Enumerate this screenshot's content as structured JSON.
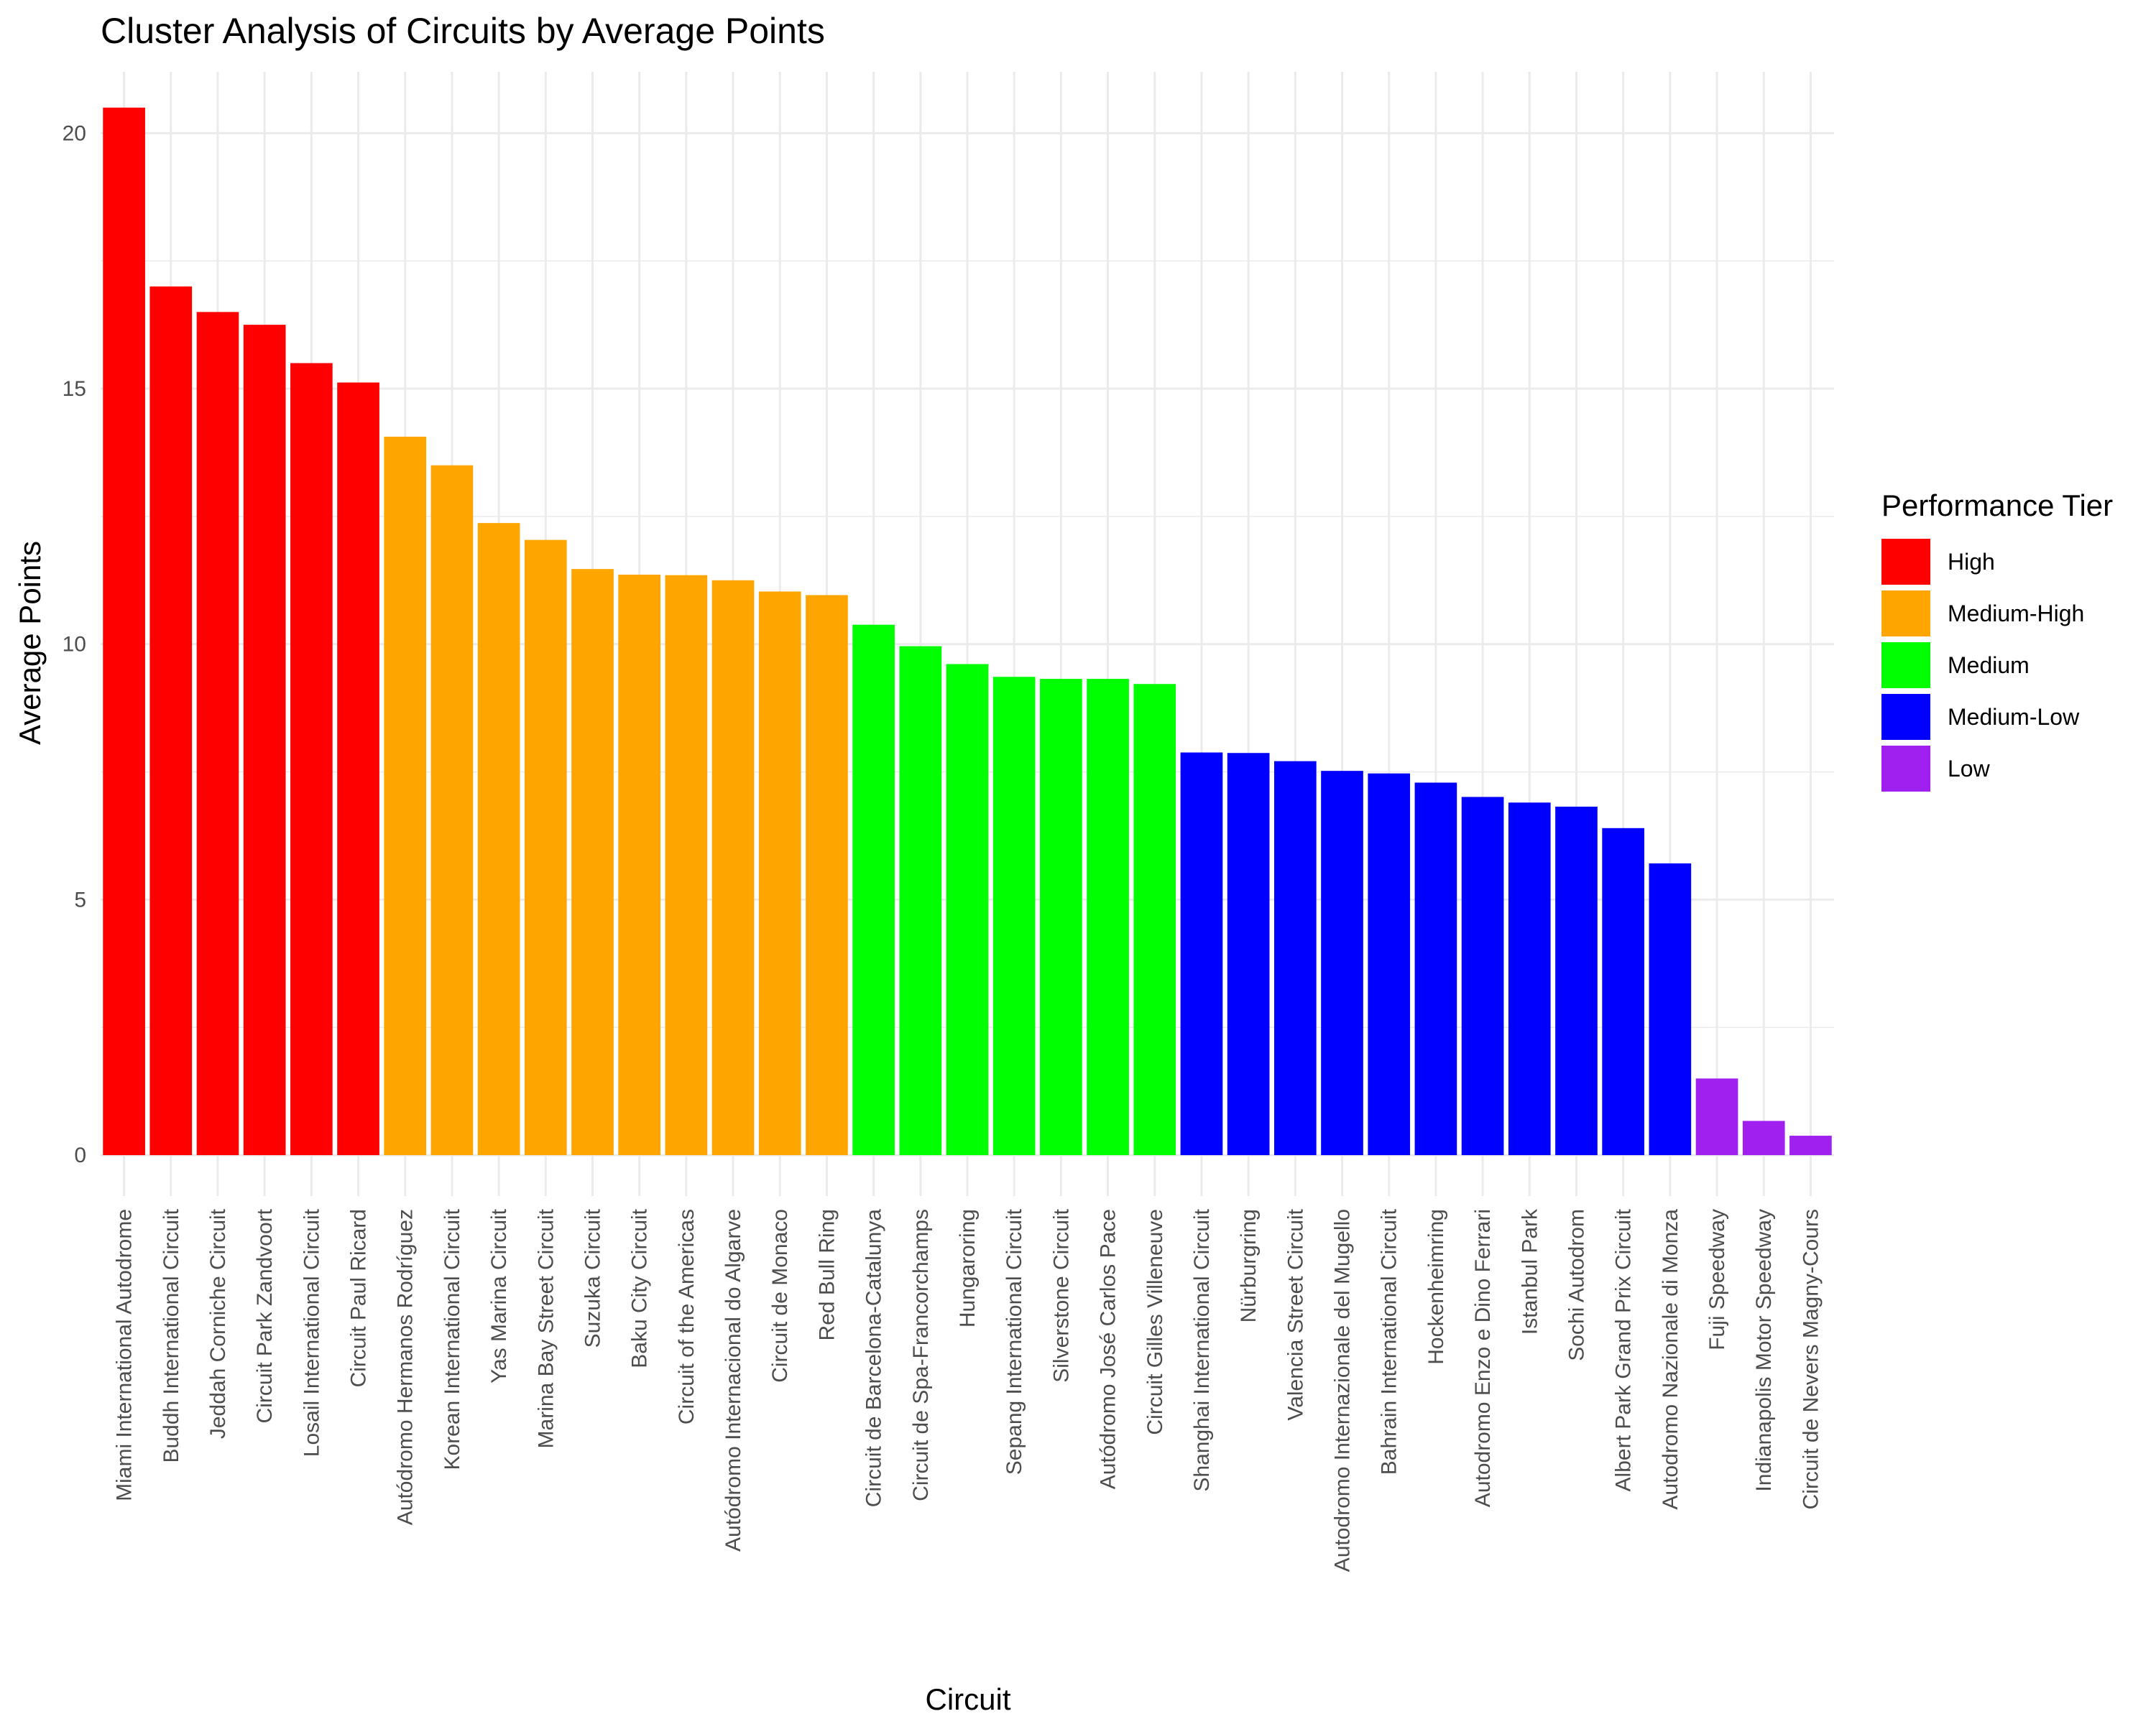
{
  "chart_data": {
    "type": "bar",
    "title": "Cluster Analysis of Circuits by Average Points",
    "xlabel": "Circuit",
    "ylabel": "Average Points",
    "ylim": [
      -0.8,
      21.2
    ],
    "yticks": [
      0,
      5,
      10,
      15,
      20
    ],
    "grid": true,
    "legend": {
      "title": "Performance Tier",
      "placement": "right",
      "entries": [
        {
          "name": "High",
          "color": "#FF0000"
        },
        {
          "name": "Medium-High",
          "color": "#FFA500"
        },
        {
          "name": "Medium",
          "color": "#00FF00"
        },
        {
          "name": "Medium-Low",
          "color": "#0000FF"
        },
        {
          "name": "Low",
          "color": "#A020F0"
        }
      ]
    },
    "categories": [
      "Miami International Autodrome",
      "Buddh International Circuit",
      "Jeddah Corniche Circuit",
      "Circuit Park Zandvoort",
      "Losail International Circuit",
      "Circuit Paul Ricard",
      "Autódromo Hermanos Rodríguez",
      "Korean International Circuit",
      "Yas Marina Circuit",
      "Marina Bay Street Circuit",
      "Suzuka Circuit",
      "Baku City Circuit",
      "Circuit of the Americas",
      "Autódromo Internacional do Algarve",
      "Circuit de Monaco",
      "Red Bull Ring",
      "Circuit de Barcelona-Catalunya",
      "Circuit de Spa-Francorchamps",
      "Hungaroring",
      "Sepang International Circuit",
      "Silverstone Circuit",
      "Autódromo José Carlos Pace",
      "Circuit Gilles Villeneuve",
      "Shanghai International Circuit",
      "Nürburgring",
      "Valencia Street Circuit",
      "Autodromo Internazionale del Mugello",
      "Bahrain International Circuit",
      "Hockenheimring",
      "Autodromo Enzo e Dino Ferrari",
      "Istanbul Park",
      "Sochi Autodrom",
      "Albert Park Grand Prix Circuit",
      "Autodromo Nazionale di Monza",
      "Fuji Speedway",
      "Indianapolis Motor Speedway",
      "Circuit de Nevers Magny-Cours"
    ],
    "values": [
      20.5,
      17.0,
      16.5,
      16.25,
      15.5,
      15.12,
      14.06,
      13.5,
      12.37,
      12.04,
      11.47,
      11.36,
      11.35,
      11.25,
      11.03,
      10.96,
      10.38,
      9.96,
      9.61,
      9.36,
      9.32,
      9.32,
      9.22,
      7.88,
      7.87,
      7.71,
      7.52,
      7.47,
      7.29,
      7.01,
      6.9,
      6.82,
      6.4,
      5.71,
      1.5,
      0.67,
      0.38
    ],
    "tiers": [
      "High",
      "High",
      "High",
      "High",
      "High",
      "High",
      "Medium-High",
      "Medium-High",
      "Medium-High",
      "Medium-High",
      "Medium-High",
      "Medium-High",
      "Medium-High",
      "Medium-High",
      "Medium-High",
      "Medium-High",
      "Medium",
      "Medium",
      "Medium",
      "Medium",
      "Medium",
      "Medium",
      "Medium",
      "Medium-Low",
      "Medium-Low",
      "Medium-Low",
      "Medium-Low",
      "Medium-Low",
      "Medium-Low",
      "Medium-Low",
      "Medium-Low",
      "Medium-Low",
      "Medium-Low",
      "Medium-Low",
      "Low",
      "Low",
      "Low"
    ]
  }
}
